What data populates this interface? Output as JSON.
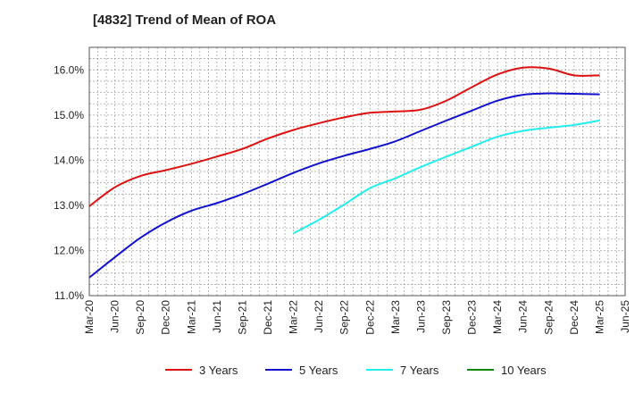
{
  "chart_data": {
    "type": "line",
    "title": "[4832]  Trend of Mean of ROA",
    "xlabel": "",
    "ylabel": "",
    "ylim": [
      11.0,
      16.5
    ],
    "yticks": [
      "11.0%",
      "12.0%",
      "13.0%",
      "14.0%",
      "15.0%",
      "16.0%"
    ],
    "x": [
      "Mar-20",
      "Jun-20",
      "Sep-20",
      "Dec-20",
      "Mar-21",
      "Jun-21",
      "Sep-21",
      "Dec-21",
      "Mar-22",
      "Jun-22",
      "Sep-22",
      "Dec-22",
      "Mar-23",
      "Jun-23",
      "Sep-23",
      "Dec-23",
      "Mar-24",
      "Jun-24",
      "Sep-24",
      "Dec-24",
      "Mar-25",
      "Jun-25"
    ],
    "grid": true,
    "legend_position": "bottom",
    "series": [
      {
        "name": "3 Years",
        "color": "#dd1111",
        "values": [
          12.98,
          13.4,
          13.65,
          13.78,
          13.92,
          14.08,
          14.25,
          14.48,
          14.67,
          14.82,
          14.95,
          15.05,
          15.08,
          15.12,
          15.32,
          15.62,
          15.9,
          16.05,
          16.03,
          15.88,
          15.88,
          null
        ]
      },
      {
        "name": "5 Years",
        "color": "#1111cc",
        "values": [
          11.4,
          11.85,
          12.28,
          12.62,
          12.88,
          13.05,
          13.25,
          13.48,
          13.72,
          13.93,
          14.1,
          14.25,
          14.42,
          14.65,
          14.88,
          15.1,
          15.32,
          15.45,
          15.48,
          15.47,
          15.46,
          null
        ]
      },
      {
        "name": "7 Years",
        "color": "#22eeee",
        "values": [
          null,
          null,
          null,
          null,
          null,
          null,
          null,
          null,
          12.38,
          12.68,
          13.02,
          13.38,
          13.6,
          13.85,
          14.08,
          14.3,
          14.52,
          14.65,
          14.72,
          14.78,
          14.88,
          null
        ]
      },
      {
        "name": "10 Years",
        "color": "#118811",
        "values": [
          null,
          null,
          null,
          null,
          null,
          null,
          null,
          null,
          null,
          null,
          null,
          null,
          null,
          null,
          null,
          null,
          null,
          null,
          null,
          null,
          null,
          null
        ]
      }
    ]
  }
}
